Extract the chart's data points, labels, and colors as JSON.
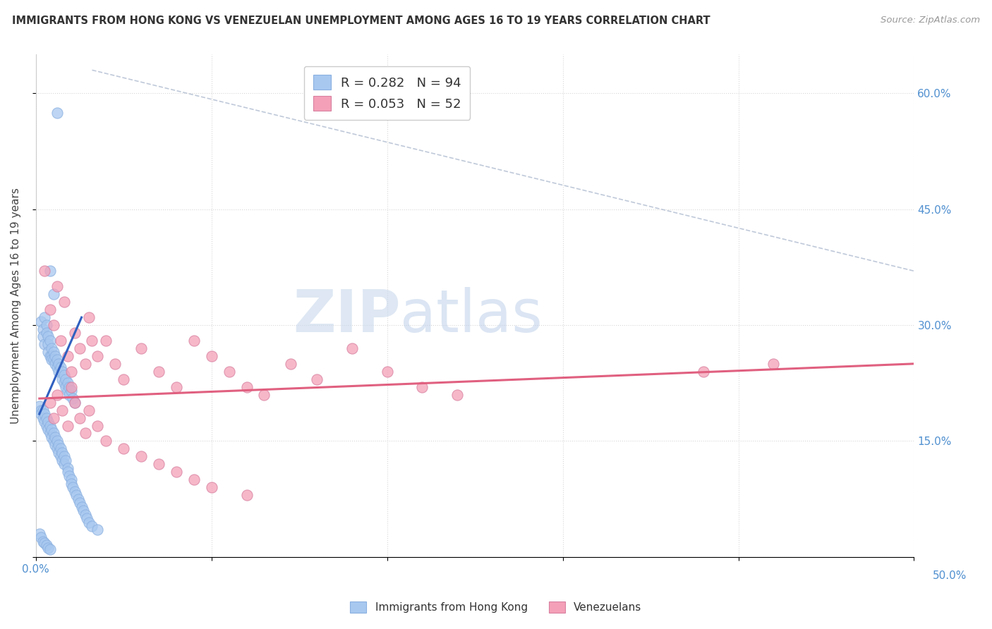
{
  "title": "IMMIGRANTS FROM HONG KONG VS VENEZUELAN UNEMPLOYMENT AMONG AGES 16 TO 19 YEARS CORRELATION CHART",
  "source": "Source: ZipAtlas.com",
  "ylabel": "Unemployment Among Ages 16 to 19 years",
  "xlim": [
    0.0,
    0.5
  ],
  "ylim": [
    0.0,
    0.65
  ],
  "hk_color": "#a8c8f0",
  "hk_line_color": "#3060c0",
  "ven_color": "#f4a0b8",
  "ven_line_color": "#e06080",
  "legend1_label": "R = 0.282   N = 94",
  "legend2_label": "R = 0.053   N = 52",
  "background_color": "#ffffff",
  "grid_color": "#d8d8d8",
  "hk_x": [
    0.012,
    0.008,
    0.01,
    0.003,
    0.004,
    0.004,
    0.005,
    0.005,
    0.006,
    0.006,
    0.007,
    0.007,
    0.007,
    0.008,
    0.008,
    0.009,
    0.009,
    0.009,
    0.01,
    0.01,
    0.011,
    0.011,
    0.012,
    0.012,
    0.013,
    0.013,
    0.014,
    0.015,
    0.015,
    0.016,
    0.016,
    0.017,
    0.017,
    0.018,
    0.018,
    0.019,
    0.019,
    0.02,
    0.021,
    0.022,
    0.002,
    0.003,
    0.003,
    0.004,
    0.004,
    0.005,
    0.005,
    0.006,
    0.006,
    0.007,
    0.007,
    0.008,
    0.008,
    0.009,
    0.009,
    0.01,
    0.01,
    0.011,
    0.011,
    0.012,
    0.012,
    0.013,
    0.013,
    0.014,
    0.014,
    0.015,
    0.015,
    0.016,
    0.016,
    0.017,
    0.018,
    0.018,
    0.019,
    0.02,
    0.02,
    0.021,
    0.022,
    0.023,
    0.024,
    0.025,
    0.026,
    0.027,
    0.028,
    0.029,
    0.03,
    0.032,
    0.035,
    0.002,
    0.003,
    0.004,
    0.005,
    0.006,
    0.007,
    0.008
  ],
  "hk_y": [
    0.575,
    0.37,
    0.34,
    0.305,
    0.295,
    0.285,
    0.31,
    0.275,
    0.3,
    0.29,
    0.285,
    0.275,
    0.265,
    0.28,
    0.26,
    0.27,
    0.26,
    0.255,
    0.265,
    0.255,
    0.26,
    0.25,
    0.255,
    0.245,
    0.25,
    0.24,
    0.245,
    0.24,
    0.23,
    0.235,
    0.225,
    0.23,
    0.22,
    0.225,
    0.215,
    0.22,
    0.21,
    0.215,
    0.205,
    0.2,
    0.195,
    0.19,
    0.185,
    0.19,
    0.18,
    0.185,
    0.175,
    0.18,
    0.17,
    0.175,
    0.165,
    0.17,
    0.16,
    0.165,
    0.155,
    0.16,
    0.15,
    0.155,
    0.145,
    0.15,
    0.14,
    0.145,
    0.135,
    0.14,
    0.13,
    0.135,
    0.125,
    0.13,
    0.12,
    0.125,
    0.115,
    0.11,
    0.105,
    0.1,
    0.095,
    0.09,
    0.085,
    0.08,
    0.075,
    0.07,
    0.065,
    0.06,
    0.055,
    0.05,
    0.045,
    0.04,
    0.035,
    0.03,
    0.025,
    0.02,
    0.018,
    0.015,
    0.012,
    0.01
  ],
  "ven_x": [
    0.005,
    0.008,
    0.01,
    0.012,
    0.014,
    0.016,
    0.018,
    0.02,
    0.022,
    0.025,
    0.028,
    0.03,
    0.032,
    0.035,
    0.04,
    0.045,
    0.05,
    0.06,
    0.07,
    0.08,
    0.09,
    0.1,
    0.11,
    0.12,
    0.13,
    0.145,
    0.16,
    0.18,
    0.2,
    0.22,
    0.24,
    0.38,
    0.42,
    0.008,
    0.01,
    0.012,
    0.015,
    0.018,
    0.02,
    0.022,
    0.025,
    0.028,
    0.03,
    0.035,
    0.04,
    0.05,
    0.06,
    0.07,
    0.08,
    0.09,
    0.1,
    0.12
  ],
  "ven_y": [
    0.37,
    0.32,
    0.3,
    0.35,
    0.28,
    0.33,
    0.26,
    0.24,
    0.29,
    0.27,
    0.25,
    0.31,
    0.28,
    0.26,
    0.28,
    0.25,
    0.23,
    0.27,
    0.24,
    0.22,
    0.28,
    0.26,
    0.24,
    0.22,
    0.21,
    0.25,
    0.23,
    0.27,
    0.24,
    0.22,
    0.21,
    0.24,
    0.25,
    0.2,
    0.18,
    0.21,
    0.19,
    0.17,
    0.22,
    0.2,
    0.18,
    0.16,
    0.19,
    0.17,
    0.15,
    0.14,
    0.13,
    0.12,
    0.11,
    0.1,
    0.09,
    0.08
  ],
  "hk_line_x": [
    0.002,
    0.026
  ],
  "hk_line_y": [
    0.185,
    0.31
  ],
  "ven_line_x": [
    0.002,
    0.5
  ],
  "ven_line_y": [
    0.205,
    0.25
  ],
  "dash_line_x": [
    0.032,
    0.5
  ],
  "dash_line_y": [
    0.63,
    0.37
  ]
}
